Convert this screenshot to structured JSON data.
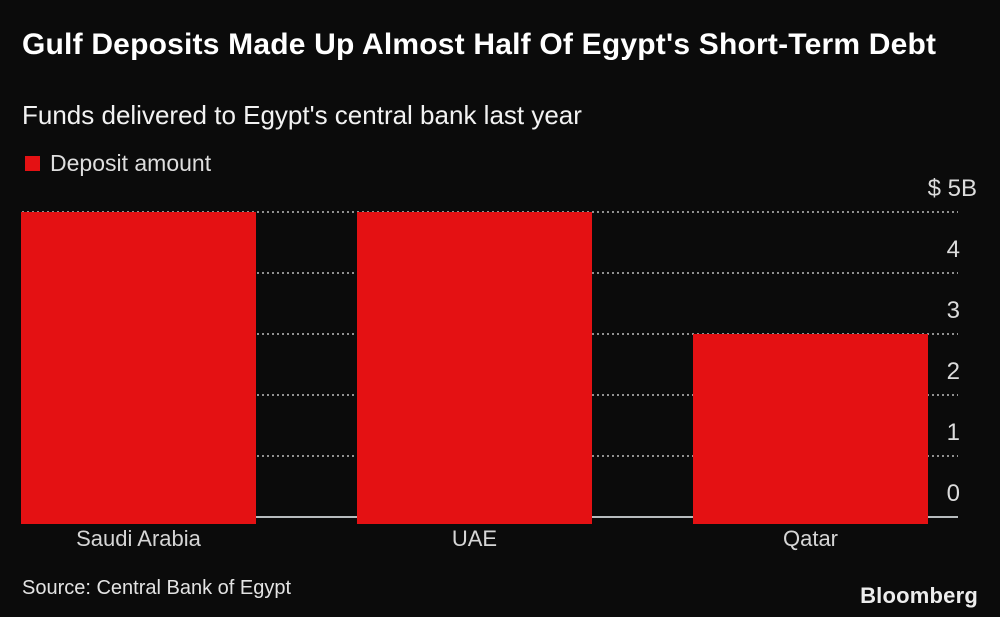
{
  "header": {
    "title": "Gulf Deposits Made Up Almost Half Of Egypt's Short-Term Debt",
    "subtitle": "Funds delivered to Egypt's central bank last year"
  },
  "legend": {
    "items": [
      {
        "label": "Deposit amount",
        "color": "#e41113"
      }
    ]
  },
  "chart_data": {
    "type": "bar",
    "title": "Gulf Deposits Made Up Almost Half Of Egypt's Short-Term Debt",
    "subtitle": "Funds delivered to Egypt's central bank last year",
    "categories": [
      "Saudi Arabia",
      "UAE",
      "Qatar"
    ],
    "values": [
      5,
      5,
      3
    ],
    "series_name": "Deposit amount",
    "unit": "USD billions",
    "xlabel": "",
    "ylabel": "",
    "ylim": [
      0,
      5
    ],
    "y_ticks": [
      "$ 5B",
      "4",
      "3",
      "2",
      "1",
      "0"
    ],
    "y_tick_values": [
      5,
      4,
      3,
      2,
      1,
      0
    ],
    "axis_side": "right",
    "grid": "horizontal dotted",
    "legend_position": "top-left",
    "bar_color": "#e41113",
    "background_color": "#0b0b0b"
  },
  "footer": {
    "source": "Source: Central Bank of Egypt",
    "brand": "Bloomberg"
  },
  "colors": {
    "background": "#0b0b0b",
    "bar": "#e41113",
    "title_text": "#ffffff",
    "subtitle_text": "#f2f2f2",
    "axis_text": "#dcdcdc",
    "gridline": "#919191",
    "baseline": "#b7bcbe"
  }
}
